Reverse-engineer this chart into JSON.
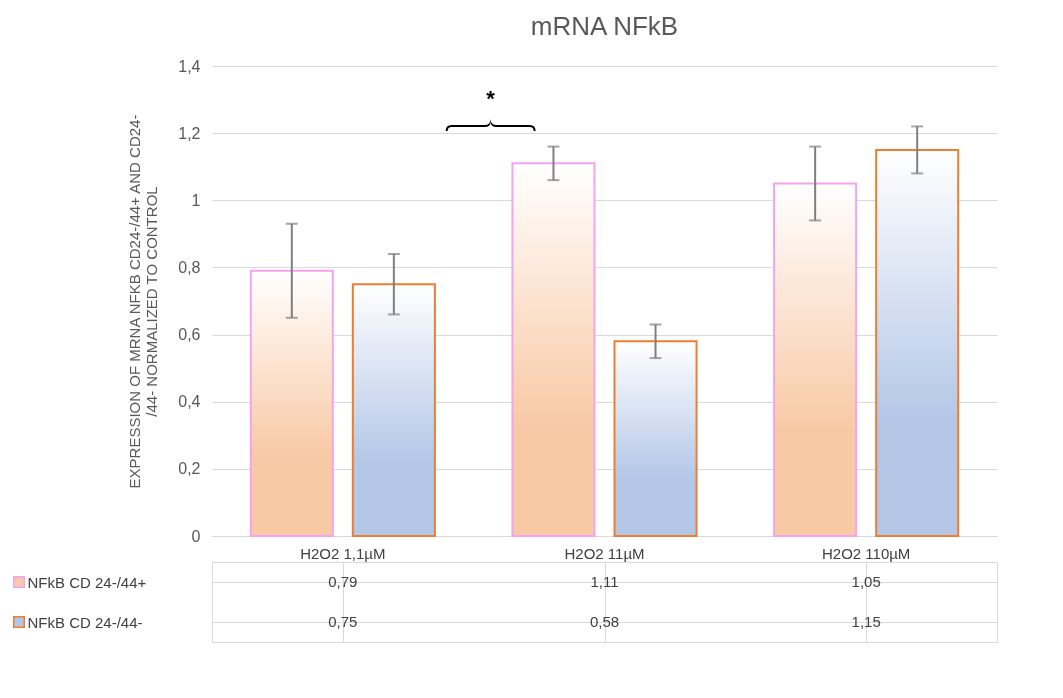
{
  "chart_data": {
    "type": "bar",
    "title": "mRNA NFkB",
    "ylabel": "EXPRESSION OF MRNA NFKB CD24-/44+ AND CD24-/44- NORMALIZED TO  CONTROL",
    "categories": [
      "H2O2 1,1µM",
      "H2O2 11µM",
      "H2O2 110µM"
    ],
    "series": [
      {
        "name": "NFkB CD 24-/44+",
        "color": "#f4a3f0",
        "values": [
          0.79,
          1.11,
          1.05
        ],
        "errors": [
          0.14,
          0.05,
          0.11
        ],
        "value_labels": [
          "0,79",
          "1,11",
          "1,05"
        ]
      },
      {
        "name": "NFkB CD 24-/44-",
        "color": "#ed7d31",
        "values": [
          0.75,
          0.58,
          1.15
        ],
        "errors": [
          0.09,
          0.05,
          0.07
        ],
        "value_labels": [
          "0,75",
          "0,58",
          "1,15"
        ]
      }
    ],
    "ylim": [
      0,
      1.4
    ],
    "yticks": [
      0,
      {
        "value": 0.2,
        "label": "0,2"
      },
      {
        "value": 0.4,
        "label": "0,4"
      },
      {
        "value": 0.6,
        "label": "0,6"
      },
      {
        "value": 0.8,
        "label": "0,8"
      },
      1,
      {
        "value": 1.2,
        "label": "1,2"
      },
      {
        "value": 1.4,
        "label": "1,4"
      }
    ],
    "grid": "y",
    "legend": "bottom",
    "data_labels": true,
    "annotations": [
      "*"
    ]
  }
}
